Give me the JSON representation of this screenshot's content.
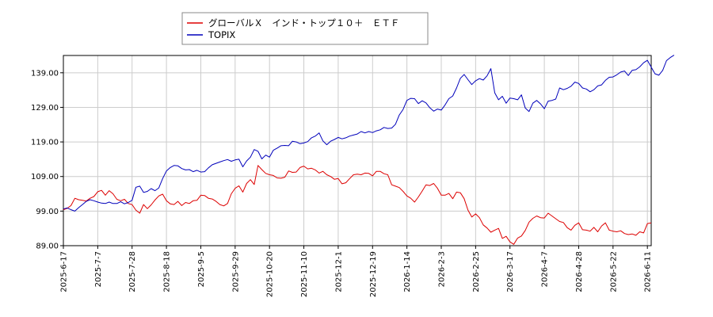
{
  "chart_data": {
    "type": "line",
    "legend": {
      "placement": "top-center"
    },
    "series": [
      {
        "name": "グローバルＸ　インド・トップ１０＋　ＥＴＦ",
        "color": "#dd0000",
        "values": [
          99.4,
          99.8,
          100.6,
          102.7,
          102.3,
          102.1,
          101.9,
          102.7,
          103.2,
          104.6,
          105.0,
          103.6,
          104.9,
          104.0,
          102.4,
          102.0,
          102.4,
          101.2,
          100.9,
          99.3,
          98.4,
          100.9,
          99.7,
          100.8,
          102.2,
          103.4,
          103.9,
          102.0,
          101.1,
          100.9,
          101.8,
          100.6,
          101.5,
          101.2,
          102.0,
          102.1,
          103.6,
          103.5,
          102.7,
          102.5,
          101.8,
          100.9,
          100.5,
          101.2,
          104.0,
          105.6,
          106.3,
          104.5,
          107.0,
          108.1,
          106.7,
          112.2,
          111.0,
          109.9,
          109.5,
          109.3,
          108.6,
          108.5,
          108.8,
          110.6,
          110.2,
          110.3,
          111.6,
          112.0,
          111.2,
          111.4,
          110.9,
          110.0,
          110.5,
          109.5,
          109.0,
          108.2,
          108.4,
          106.9,
          107.2,
          108.4,
          109.5,
          109.7,
          109.5,
          110.0,
          109.9,
          109.2,
          110.5,
          110.5,
          109.8,
          109.5,
          106.6,
          106.2,
          105.8,
          104.7,
          103.4,
          102.7,
          101.6,
          103.1,
          104.8,
          106.6,
          106.4,
          107.0,
          105.6,
          103.6,
          103.6,
          104.1,
          102.6,
          104.5,
          104.3,
          102.6,
          99.3,
          97.3,
          98.2,
          97.1,
          95.0,
          94.1,
          92.9,
          93.5,
          94.0,
          91.1,
          91.7,
          90.1,
          89.4,
          91.2,
          91.8,
          93.4,
          95.8,
          96.9,
          97.6,
          97.1,
          97.0,
          98.4,
          97.6,
          96.8,
          96.0,
          95.7,
          94.2,
          93.5,
          94.9,
          95.6,
          93.6,
          93.5,
          93.2,
          94.3,
          93.0,
          94.7,
          95.6,
          93.5,
          93.2,
          93.0,
          93.3,
          92.5,
          92.2,
          92.4,
          92.0,
          93.0,
          92.7,
          95.4,
          95.6
        ]
      },
      {
        "name": "TOPIX",
        "color": "#0000bb",
        "values": [
          99.6,
          99.9,
          99.4,
          99.0,
          100.0,
          100.9,
          101.8,
          102.3,
          102.0,
          101.6,
          101.3,
          101.2,
          101.6,
          101.2,
          101.2,
          101.7,
          101.1,
          101.5,
          102.1,
          105.9,
          106.2,
          104.4,
          104.7,
          105.5,
          104.9,
          105.7,
          108.4,
          110.6,
          111.6,
          112.2,
          112.1,
          111.3,
          110.9,
          111.0,
          110.4,
          110.8,
          110.3,
          110.4,
          111.5,
          112.4,
          112.8,
          113.2,
          113.6,
          113.9,
          113.4,
          113.8,
          114.0,
          111.8,
          113.5,
          114.6,
          116.8,
          116.3,
          114.1,
          115.2,
          114.6,
          116.6,
          117.2,
          117.9,
          118.0,
          117.9,
          119.2,
          119.0,
          118.5,
          118.7,
          119.1,
          120.2,
          120.7,
          121.6,
          119.3,
          118.2,
          119.2,
          119.7,
          120.3,
          119.9,
          120.2,
          120.7,
          121.0,
          121.3,
          122.0,
          121.6,
          122.0,
          121.7,
          122.2,
          122.5,
          123.2,
          122.9,
          123.0,
          124.1,
          126.8,
          128.4,
          131.0,
          131.6,
          131.5,
          130.1,
          130.9,
          130.3,
          128.9,
          127.9,
          128.5,
          128.2,
          129.7,
          131.5,
          132.3,
          134.6,
          137.4,
          138.5,
          137.0,
          135.6,
          136.7,
          137.3,
          136.9,
          138.1,
          140.2,
          133.2,
          131.2,
          132.2,
          130.2,
          131.7,
          131.5,
          131.2,
          132.6,
          128.8,
          127.8,
          130.2,
          131.0,
          130.0,
          128.6,
          130.8,
          131.0,
          131.4,
          134.6,
          134.1,
          134.5,
          135.1,
          136.3,
          135.9,
          134.6,
          134.3,
          133.5,
          134.1,
          135.2,
          135.5,
          136.8,
          137.7,
          137.8,
          138.4,
          139.2,
          139.5,
          138.2,
          139.7,
          139.9,
          140.7,
          141.9,
          142.6,
          140.6,
          138.7,
          138.3,
          139.7,
          142.5,
          143.4,
          144.1
        ]
      }
    ],
    "x_tick_labels": [
      "2025-6-17",
      "2025-7-7",
      "2025-7-28",
      "2025-8-18",
      "2025-9-5",
      "2025-9-29",
      "2025-10-20",
      "2025-11-10",
      "2025-12-1",
      "2025-12-19",
      "2026-1-14",
      "2026-2-3",
      "2026-2-25",
      "2026-3-17",
      "2026-4-7",
      "2026-4-28",
      "2026-5-22",
      "2026-6-11"
    ],
    "x_tick_index": [
      0,
      9,
      18,
      27,
      36,
      45,
      54,
      63,
      72,
      81,
      90,
      99,
      108,
      117,
      126,
      135,
      144,
      153
    ],
    "y_ticks": [
      89.0,
      99.0,
      109.0,
      119.0,
      129.0,
      139.0
    ],
    "y_tick_labels": [
      "89.00",
      "99.00",
      "109.00",
      "119.00",
      "129.00",
      "139.00"
    ],
    "ylim": [
      89.0,
      144.0
    ],
    "grid": true
  }
}
